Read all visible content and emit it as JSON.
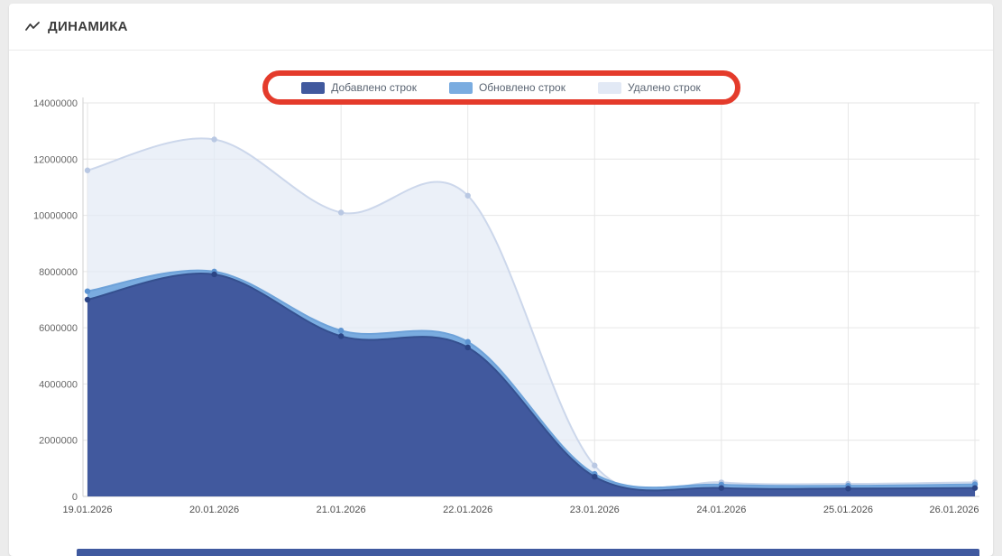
{
  "panel": {
    "title": "ДИНАМИКА"
  },
  "chart_data": {
    "type": "area",
    "title": "ДИНАМИКА",
    "categories": [
      "19.01.2026",
      "20.01.2026",
      "21.01.2026",
      "22.01.2026",
      "23.01.2026",
      "24.01.2026",
      "25.01.2026",
      "26.01.2026"
    ],
    "series": [
      {
        "name": "Добавлено строк",
        "color": "#41599e",
        "line_color": "#35508f",
        "marker_color": "#2c4585",
        "fill_opacity": 1,
        "values": [
          7000000,
          7900000,
          5700000,
          5300000,
          700000,
          300000,
          280000,
          300000
        ]
      },
      {
        "name": "Обновлено строк",
        "color": "#7aace0",
        "line_color": "#6ea2d9",
        "marker_color": "#5d94d2",
        "fill_opacity": 1,
        "values": [
          7300000,
          8000000,
          5900000,
          5500000,
          800000,
          420000,
          380000,
          430000
        ]
      },
      {
        "name": "Удалено строк",
        "color": "#e2e9f5",
        "line_color": "#ccd7eb",
        "marker_color": "#b9c8e3",
        "fill_opacity": 0.7,
        "values": [
          11600000,
          12700000,
          10100000,
          10700000,
          1100000,
          500000,
          450000,
          500000
        ]
      }
    ],
    "ylim": [
      0,
      14000000
    ],
    "y_ticks": [
      0,
      2000000,
      4000000,
      6000000,
      8000000,
      10000000,
      12000000,
      14000000
    ],
    "grid": true,
    "legend_position": "top"
  },
  "annotation": {
    "legend_highlight_color": "#e43b2b"
  }
}
